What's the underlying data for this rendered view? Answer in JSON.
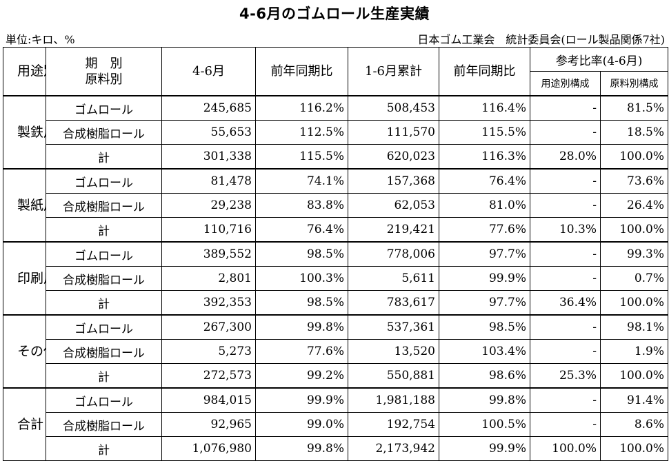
{
  "title": "4-6月のゴムロール生産実績",
  "unit": "単位:キロ、%",
  "source": "日本ゴム工業会　統計委員会(ロール製品関係7社)",
  "headers": {
    "use": "用途別",
    "material_line1": "期　別",
    "material_line2": "原料別",
    "apr_jun": "4-6月",
    "yoy1": "前年同期比",
    "ytd": "1-6月累計",
    "yoy2": "前年同期比",
    "ref": "参考比率(4-6月)",
    "use_ratio": "用途別構成",
    "material_ratio": "原料別構成"
  },
  "sections": [
    {
      "use": "製鉄用",
      "rows": [
        {
          "material": "ゴムロール",
          "q": "245,685",
          "yoy1": "116.2%",
          "ytd": "508,453",
          "yoy2": "116.4%",
          "use_ratio": "-",
          "mat_ratio": "81.5%"
        },
        {
          "material": "合成樹脂ロール",
          "q": "55,653",
          "yoy1": "112.5%",
          "ytd": "111,570",
          "yoy2": "115.5%",
          "use_ratio": "-",
          "mat_ratio": "18.5%"
        },
        {
          "material": "計",
          "q": "301,338",
          "yoy1": "115.5%",
          "ytd": "620,023",
          "yoy2": "116.3%",
          "use_ratio": "28.0%",
          "mat_ratio": "100.0%"
        }
      ]
    },
    {
      "use": "製紙用",
      "rows": [
        {
          "material": "ゴムロール",
          "q": "81,478",
          "yoy1": "74.1%",
          "ytd": "157,368",
          "yoy2": "76.4%",
          "use_ratio": "-",
          "mat_ratio": "73.6%"
        },
        {
          "material": "合成樹脂ロール",
          "q": "29,238",
          "yoy1": "83.8%",
          "ytd": "62,053",
          "yoy2": "81.0%",
          "use_ratio": "-",
          "mat_ratio": "26.4%"
        },
        {
          "material": "計",
          "q": "110,716",
          "yoy1": "76.4%",
          "ytd": "219,421",
          "yoy2": "77.6%",
          "use_ratio": "10.3%",
          "mat_ratio": "100.0%"
        }
      ]
    },
    {
      "use": "印刷用",
      "rows": [
        {
          "material": "ゴムロール",
          "q": "389,552",
          "yoy1": "98.5%",
          "ytd": "778,006",
          "yoy2": "97.7%",
          "use_ratio": "-",
          "mat_ratio": "99.3%"
        },
        {
          "material": "合成樹脂ロール",
          "q": "2,801",
          "yoy1": "100.3%",
          "ytd": "5,611",
          "yoy2": "99.9%",
          "use_ratio": "-",
          "mat_ratio": "0.7%"
        },
        {
          "material": "計",
          "q": "392,353",
          "yoy1": "98.5%",
          "ytd": "783,617",
          "yoy2": "97.7%",
          "use_ratio": "36.4%",
          "mat_ratio": "100.0%"
        }
      ]
    },
    {
      "use": "その他用",
      "rows": [
        {
          "material": "ゴムロール",
          "q": "267,300",
          "yoy1": "99.8%",
          "ytd": "537,361",
          "yoy2": "98.5%",
          "use_ratio": "-",
          "mat_ratio": "98.1%"
        },
        {
          "material": "合成樹脂ロール",
          "q": "5,273",
          "yoy1": "77.6%",
          "ytd": "13,520",
          "yoy2": "103.4%",
          "use_ratio": "-",
          "mat_ratio": "1.9%"
        },
        {
          "material": "計",
          "q": "272,573",
          "yoy1": "99.2%",
          "ytd": "550,881",
          "yoy2": "98.6%",
          "use_ratio": "25.3%",
          "mat_ratio": "100.0%"
        }
      ]
    },
    {
      "use": "合計",
      "rows": [
        {
          "material": "ゴムロール",
          "q": "984,015",
          "yoy1": "99.9%",
          "ytd": "1,981,188",
          "yoy2": "99.8%",
          "use_ratio": "-",
          "mat_ratio": "91.4%"
        },
        {
          "material": "合成樹脂ロール",
          "q": "92,965",
          "yoy1": "99.0%",
          "ytd": "192,754",
          "yoy2": "100.5%",
          "use_ratio": "-",
          "mat_ratio": "8.6%"
        },
        {
          "material": "計",
          "q": "1,076,980",
          "yoy1": "99.8%",
          "ytd": "2,173,942",
          "yoy2": "99.9%",
          "use_ratio": "100.0%",
          "mat_ratio": "100.0%"
        }
      ]
    }
  ]
}
